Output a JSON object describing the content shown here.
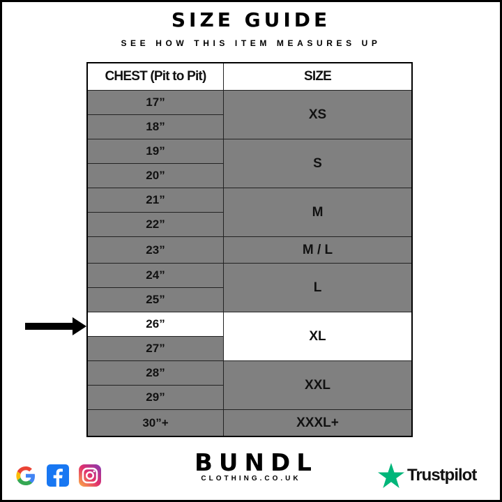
{
  "header": {
    "title": "SIZE GUIDE",
    "subtitle": "SEE HOW THIS ITEM MEASURES UP"
  },
  "table": {
    "columns": [
      "CHEST (Pit to Pit)",
      "SIZE"
    ],
    "groups": [
      {
        "size": "XS",
        "chest": [
          "17”",
          "18”"
        ]
      },
      {
        "size": "S",
        "chest": [
          "19”",
          "20”"
        ]
      },
      {
        "size": "M",
        "chest": [
          "21”",
          "22”"
        ]
      },
      {
        "size": "M / L",
        "chest": [
          "23”"
        ]
      },
      {
        "size": "L",
        "chest": [
          "24”",
          "25”"
        ]
      },
      {
        "size": "XL",
        "chest": [
          "26”",
          "27”"
        ]
      },
      {
        "size": "XXL",
        "chest": [
          "28”",
          "29”"
        ]
      },
      {
        "size": "XXXL+",
        "chest": [
          "30”+"
        ]
      }
    ],
    "highlighted_chest": "26”",
    "highlighted_size": "XL",
    "colors": {
      "cell": "#808080",
      "highlight": "#ffffff"
    }
  },
  "footer": {
    "social_icons": [
      "google-icon",
      "facebook-icon",
      "instagram-icon"
    ],
    "brand": {
      "name": "BUNDL",
      "domain": "CLOTHING.CO.UK"
    },
    "trustpilot": {
      "label": "Trustpilot",
      "color": "#00b67a"
    }
  }
}
